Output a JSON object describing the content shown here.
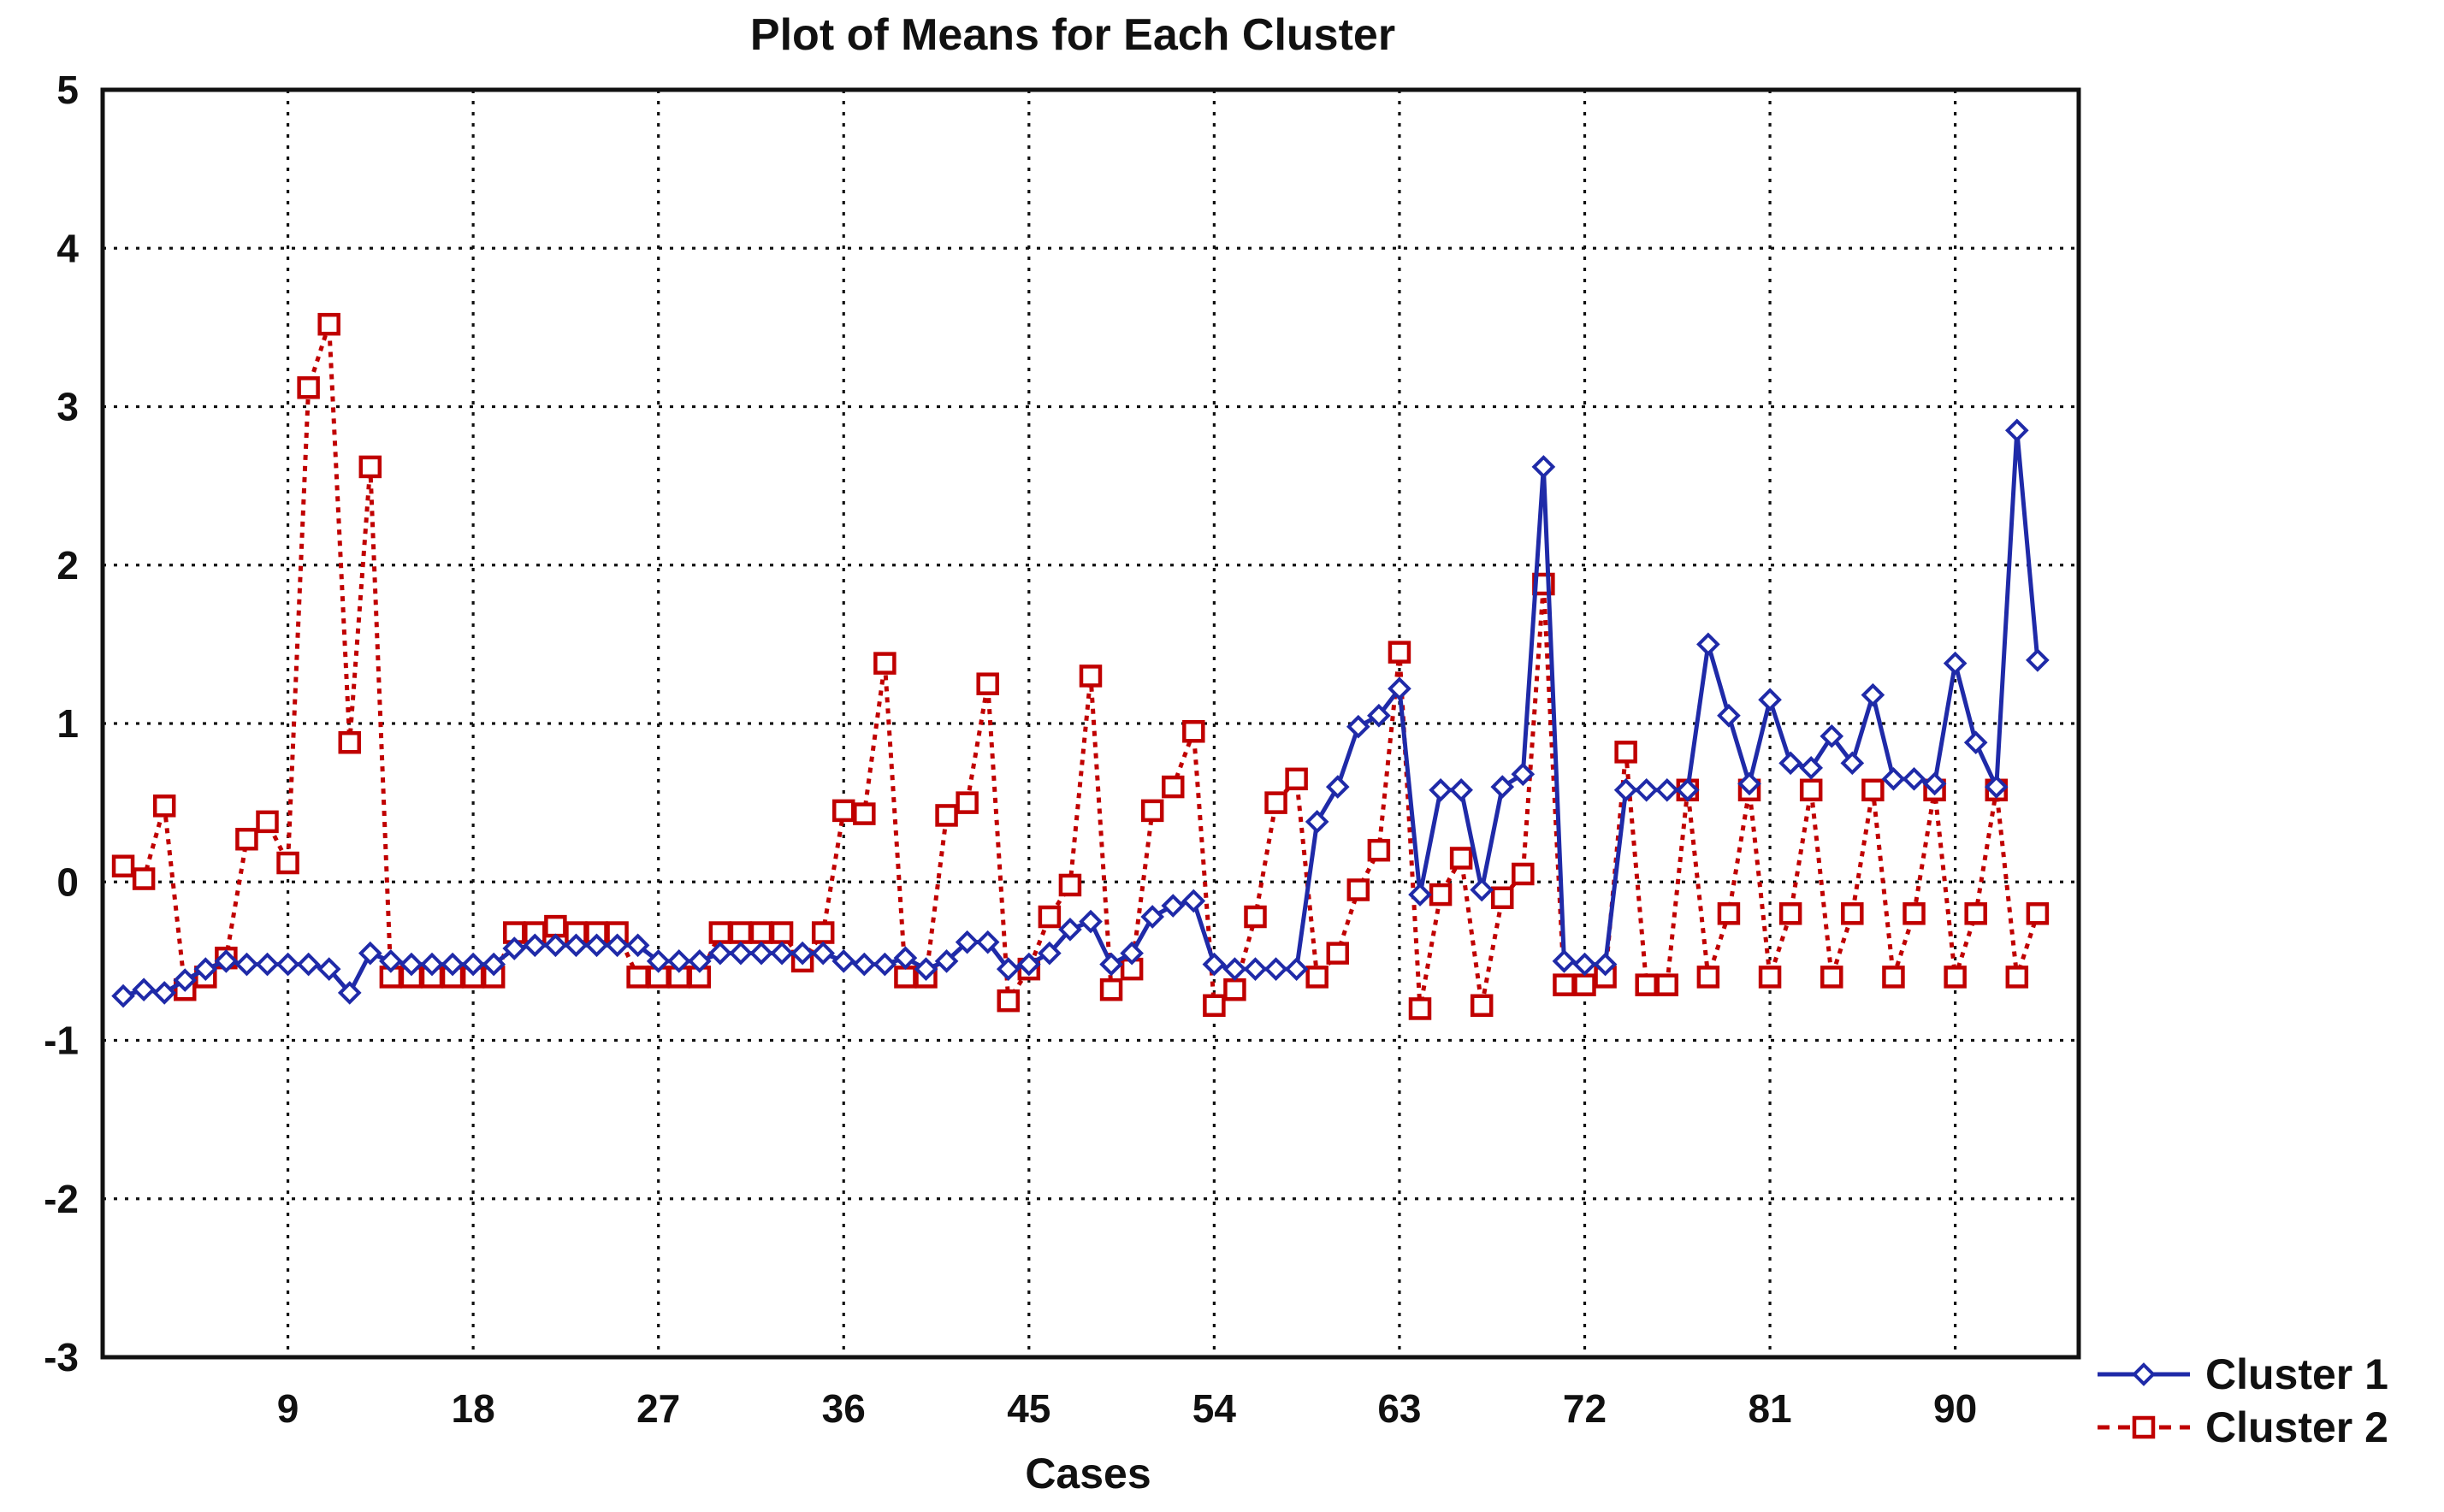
{
  "chart_data": {
    "type": "line",
    "title": "Plot of Means for Each Cluster",
    "xlabel": "Cases",
    "ylabel": "",
    "xlim": [
      0,
      96
    ],
    "ylim": [
      -3,
      5
    ],
    "xticks": [
      9,
      18,
      27,
      36,
      45,
      54,
      63,
      72,
      81,
      90
    ],
    "yticks": [
      5,
      4,
      3,
      2,
      1,
      0,
      -1,
      -2,
      -3
    ],
    "grid": true,
    "legend_position": "bottom-right outside",
    "series": [
      {
        "name": "Cluster  1",
        "color": "#1f2aa8",
        "marker": "diamond",
        "line_style": "solid",
        "values": [
          -0.72,
          -0.68,
          -0.7,
          -0.62,
          -0.55,
          -0.5,
          -0.52,
          -0.52,
          -0.52,
          -0.52,
          -0.55,
          -0.7,
          -0.45,
          -0.5,
          -0.52,
          -0.52,
          -0.52,
          -0.52,
          -0.52,
          -0.42,
          -0.4,
          -0.4,
          -0.4,
          -0.4,
          -0.4,
          -0.4,
          -0.5,
          -0.5,
          -0.5,
          -0.45,
          -0.45,
          -0.45,
          -0.45,
          -0.45,
          -0.45,
          -0.5,
          -0.52,
          -0.52,
          -0.48,
          -0.55,
          -0.5,
          -0.38,
          -0.38,
          -0.55,
          -0.52,
          -0.45,
          -0.3,
          -0.25,
          -0.52,
          -0.45,
          -0.22,
          -0.15,
          -0.12,
          -0.52,
          -0.55,
          -0.55,
          -0.55,
          -0.55,
          0.38,
          0.6,
          0.98,
          1.05,
          1.22,
          -0.08,
          0.58,
          0.58,
          -0.05,
          0.6,
          0.68,
          2.62,
          -0.5,
          -0.52,
          -0.52,
          0.58,
          0.58,
          0.58,
          0.58,
          1.5,
          1.05,
          0.62,
          1.15,
          0.75,
          0.72,
          0.92,
          0.75,
          1.18,
          0.65,
          0.65,
          0.62,
          1.38,
          0.88,
          0.6,
          2.85,
          1.4
        ]
      },
      {
        "name": "Cluster  2",
        "color": "#c00000",
        "marker": "square",
        "line_style": "dashed",
        "values": [
          0.1,
          0.02,
          0.48,
          -0.68,
          -0.6,
          -0.48,
          0.27,
          0.38,
          0.12,
          3.12,
          3.52,
          0.88,
          2.62,
          -0.6,
          -0.6,
          -0.6,
          -0.6,
          -0.6,
          -0.6,
          -0.32,
          -0.32,
          -0.28,
          -0.32,
          -0.32,
          -0.32,
          -0.6,
          -0.6,
          -0.6,
          -0.6,
          -0.32,
          -0.32,
          -0.32,
          -0.32,
          -0.5,
          -0.32,
          0.45,
          0.43,
          1.38,
          -0.6,
          -0.6,
          0.42,
          0.5,
          1.25,
          -0.75,
          -0.55,
          -0.22,
          -0.02,
          1.3,
          -0.68,
          -0.55,
          0.45,
          0.6,
          0.95,
          -0.78,
          -0.68,
          -0.22,
          0.5,
          0.65,
          -0.6,
          -0.45,
          -0.05,
          0.2,
          1.45,
          -0.8,
          -0.08,
          0.15,
          -0.78,
          -0.1,
          0.05,
          1.88,
          -0.65,
          -0.65,
          -0.6,
          0.82,
          -0.65,
          -0.65,
          0.58,
          -0.6,
          -0.2,
          0.58,
          -0.6,
          -0.2,
          0.58,
          -0.6,
          -0.2,
          0.58,
          -0.6,
          -0.2,
          0.58,
          -0.6,
          -0.2,
          0.58,
          -0.6,
          -0.2
        ]
      }
    ]
  }
}
